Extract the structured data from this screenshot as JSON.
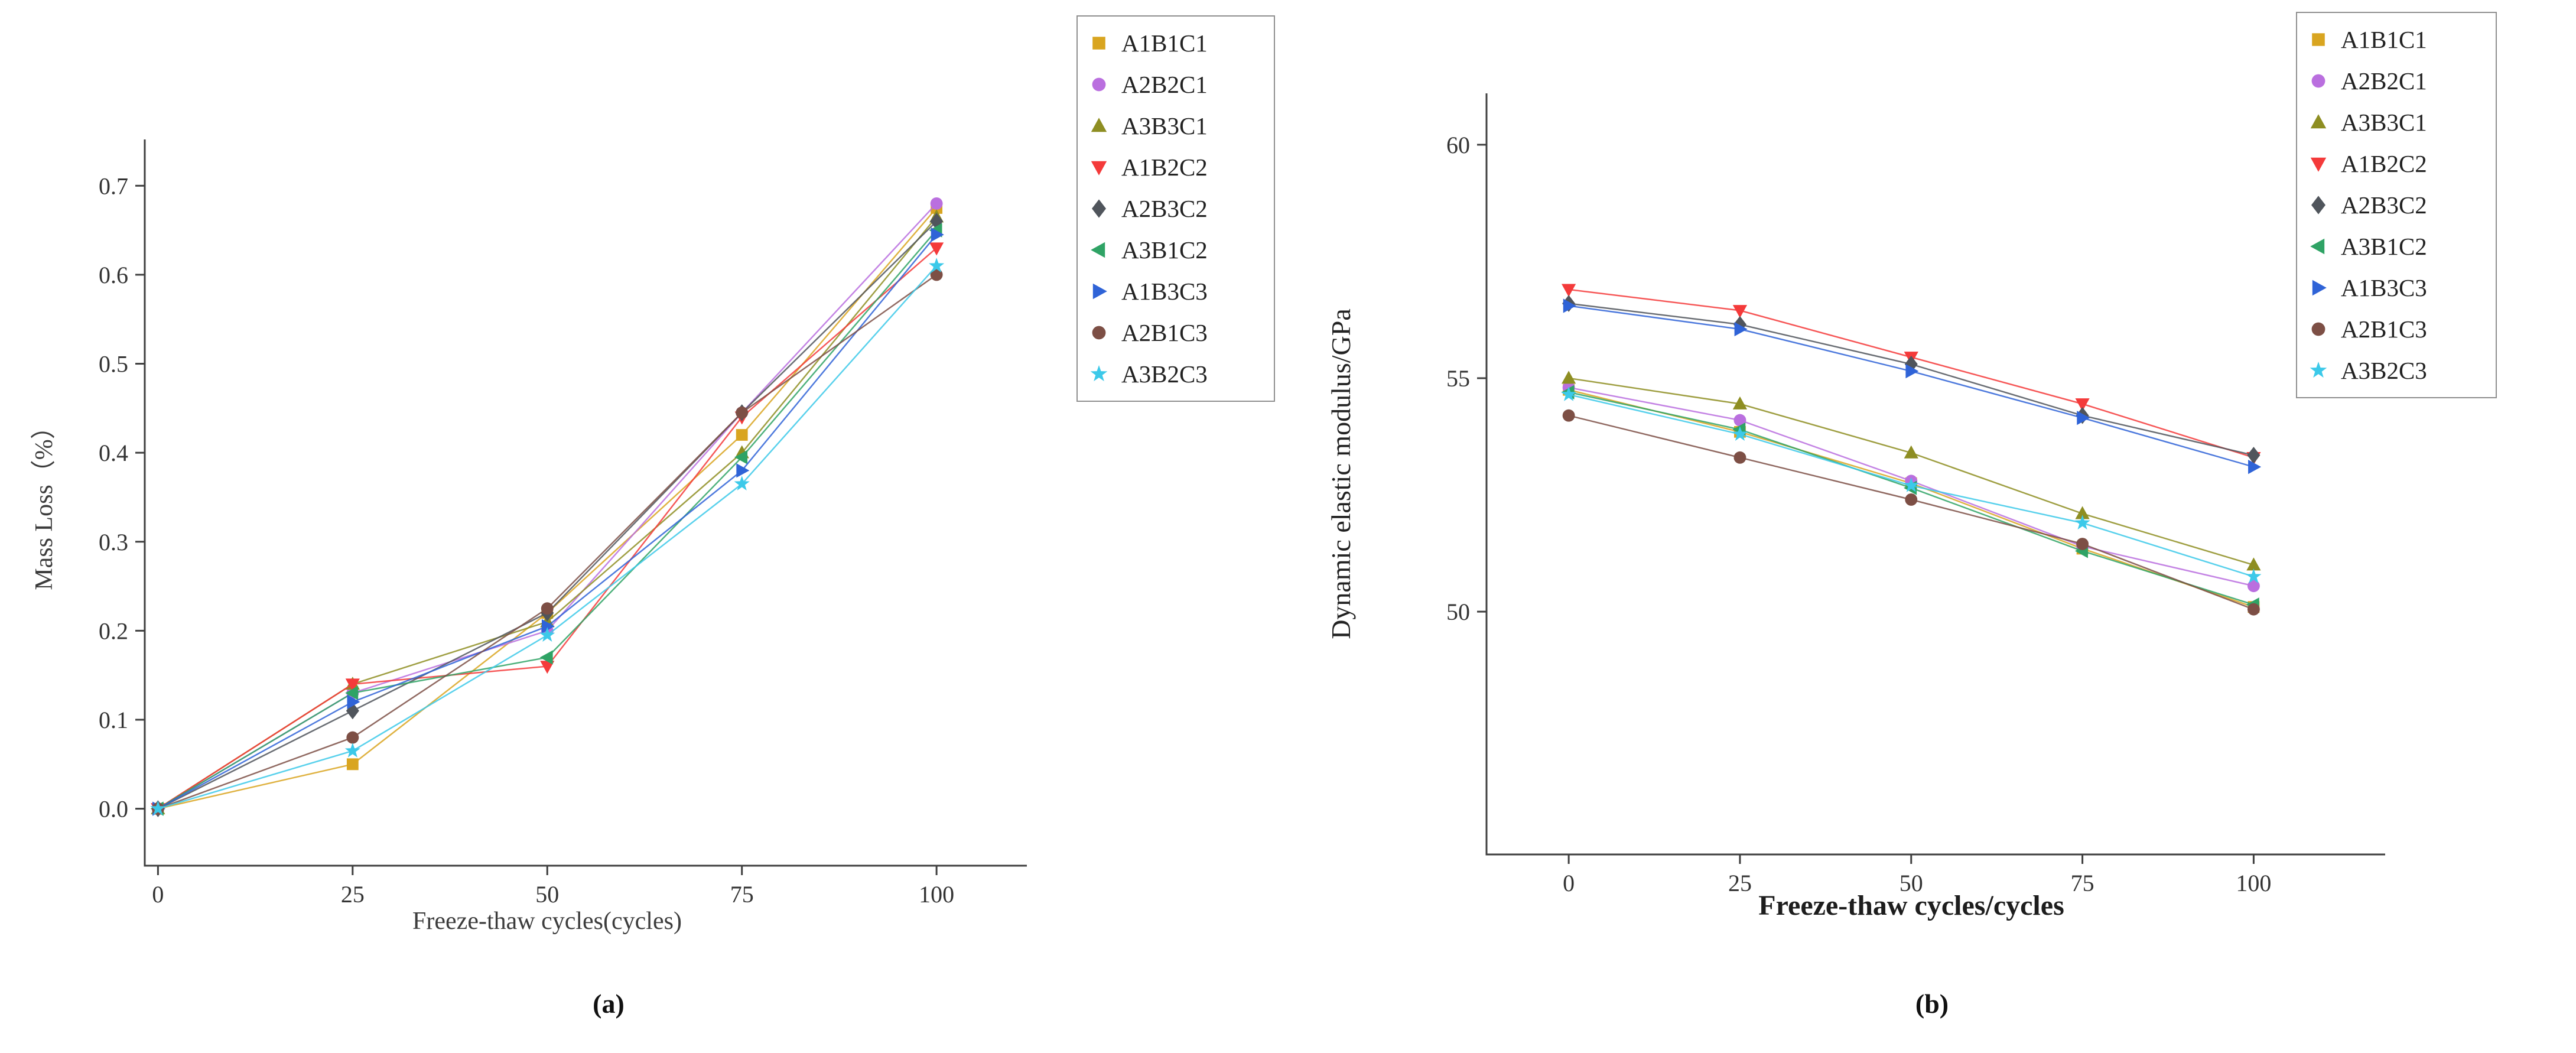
{
  "figure": {
    "captions": [
      "(a)",
      "(b)"
    ],
    "background": "#ffffff",
    "axis_color": "#3f3f3f"
  },
  "chart_data": [
    {
      "id": "a",
      "type": "line",
      "title": "",
      "xlabel": "Freeze-thaw cycles(cycles)",
      "ylabel": "Mass Loss（%）",
      "x": [
        0,
        25,
        50,
        75,
        100
      ],
      "xticks": [
        0,
        25,
        50,
        75,
        100
      ],
      "xtick_labels": [
        "0",
        "25",
        "50",
        "75",
        "100"
      ],
      "yticks": [
        0.0,
        0.1,
        0.2,
        0.3,
        0.4,
        0.5,
        0.6,
        0.7
      ],
      "ytick_labels": [
        "0.0",
        "0.1",
        "0.2",
        "0.3",
        "0.4",
        "0.5",
        "0.6",
        "0.7"
      ],
      "xlim": [
        -1.7,
        111.6
      ],
      "ylim": [
        -0.064,
        0.752
      ],
      "grid": false,
      "legend_position": "outside-top-right",
      "series": [
        {
          "name": "A1B1C1",
          "marker": "square",
          "color": "#d9a520",
          "values": [
            0,
            0.05,
            0.22,
            0.42,
            0.675
          ]
        },
        {
          "name": "A2B2C1",
          "marker": "circle",
          "color": "#ba6fdf",
          "values": [
            0,
            0.13,
            0.2,
            0.445,
            0.68
          ]
        },
        {
          "name": "A3B3C1",
          "marker": "triangle-up",
          "color": "#8e8e22",
          "values": [
            0,
            0.14,
            0.21,
            0.4,
            0.665
          ]
        },
        {
          "name": "A1B2C2",
          "marker": "triangle-down",
          "color": "#f43a3a",
          "values": [
            0,
            0.14,
            0.16,
            0.44,
            0.63
          ]
        },
        {
          "name": "A2B3C2",
          "marker": "diamond",
          "color": "#50555c",
          "values": [
            0,
            0.11,
            0.22,
            0.445,
            0.66
          ]
        },
        {
          "name": "A3B1C2",
          "marker": "triangle-left",
          "color": "#2fa365",
          "values": [
            0,
            0.13,
            0.17,
            0.395,
            0.65
          ]
        },
        {
          "name": "A1B3C3",
          "marker": "triangle-right",
          "color": "#2f63d7",
          "values": [
            0,
            0.12,
            0.205,
            0.38,
            0.645
          ]
        },
        {
          "name": "A2B1C3",
          "marker": "circle",
          "color": "#7d4f45",
          "values": [
            0,
            0.08,
            0.225,
            0.445,
            0.6
          ]
        },
        {
          "name": "A3B2C3",
          "marker": "star",
          "color": "#3cc9e9",
          "values": [
            0,
            0.065,
            0.195,
            0.365,
            0.61
          ]
        }
      ]
    },
    {
      "id": "b",
      "type": "line",
      "title": "",
      "xlabel": "Freeze-thaw cycles/cycles",
      "ylabel": "Dynamic elastic modulus/GPa",
      "x": [
        0,
        25,
        50,
        75,
        100
      ],
      "xticks": [
        0,
        25,
        50,
        75,
        100
      ],
      "xtick_labels": [
        "0",
        "25",
        "50",
        "75",
        "100"
      ],
      "yticks": [
        50,
        55,
        60
      ],
      "ytick_labels": [
        "50",
        "55",
        "60"
      ],
      "xlim": [
        -12,
        119.2
      ],
      "ylim": [
        44.8,
        61.1
      ],
      "grid": false,
      "legend_position": "outside-top-right",
      "series": [
        {
          "name": "A1B1C1",
          "marker": "square",
          "color": "#d9a520",
          "values": [
            54.75,
            53.85,
            52.75,
            51.35,
            50.1
          ]
        },
        {
          "name": "A2B2C1",
          "marker": "circle",
          "color": "#ba6fdf",
          "values": [
            54.8,
            54.1,
            52.8,
            51.4,
            50.55
          ]
        },
        {
          "name": "A3B3C1",
          "marker": "triangle-up",
          "color": "#8e8e22",
          "values": [
            55.0,
            54.45,
            53.4,
            52.1,
            51.0
          ]
        },
        {
          "name": "A1B2C2",
          "marker": "triangle-down",
          "color": "#f43a3a",
          "values": [
            56.9,
            56.45,
            55.45,
            54.45,
            53.3
          ]
        },
        {
          "name": "A2B3C2",
          "marker": "diamond",
          "color": "#50555c",
          "values": [
            56.6,
            56.15,
            55.3,
            54.2,
            53.35
          ]
        },
        {
          "name": "A3B1C2",
          "marker": "triangle-left",
          "color": "#2fa365",
          "values": [
            54.7,
            53.9,
            52.65,
            51.3,
            50.15
          ]
        },
        {
          "name": "A1B3C3",
          "marker": "triangle-right",
          "color": "#2f63d7",
          "values": [
            56.55,
            56.05,
            55.15,
            54.15,
            53.1
          ]
        },
        {
          "name": "A2B1C3",
          "marker": "circle",
          "color": "#7d4f45",
          "values": [
            54.2,
            53.3,
            52.4,
            51.45,
            50.05
          ]
        },
        {
          "name": "A3B2C3",
          "marker": "star",
          "color": "#3cc9e9",
          "values": [
            54.65,
            53.8,
            52.7,
            51.9,
            50.75
          ]
        }
      ]
    }
  ]
}
